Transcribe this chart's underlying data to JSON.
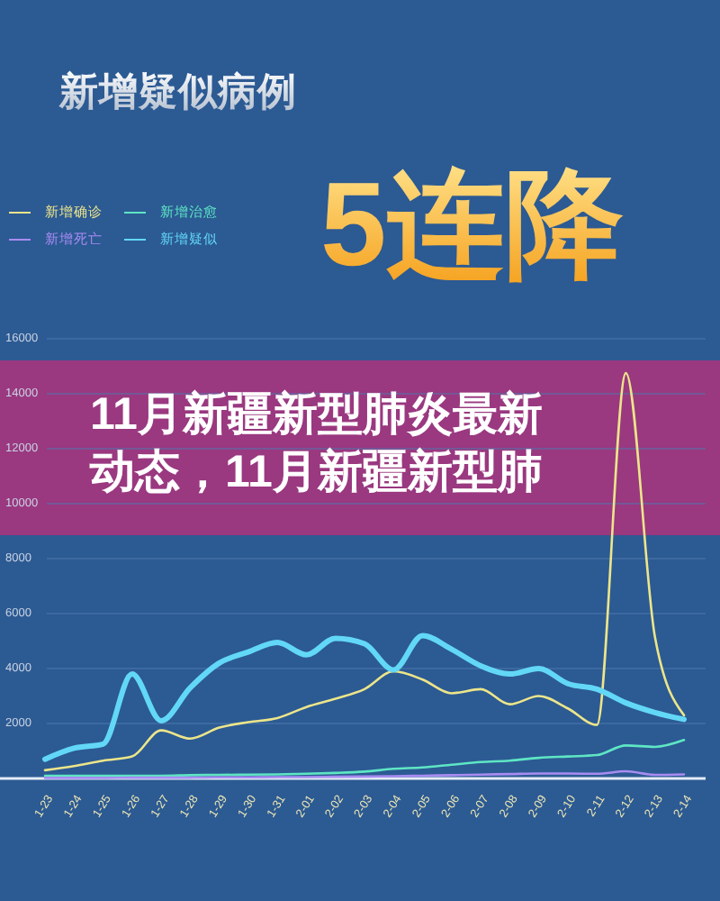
{
  "chart_data": {
    "type": "line",
    "title": "新增疑似病例",
    "subtitle": "5连降",
    "annotations": [
      "11月新疆新型肺炎最新动态，11月新疆新型肺"
    ],
    "categories": [
      "1-23",
      "1-24",
      "1-25",
      "1-26",
      "1-27",
      "1-28",
      "1-29",
      "1-30",
      "1-31",
      "2-01",
      "2-02",
      "2-03",
      "2-04",
      "2-05",
      "2-06",
      "2-07",
      "2-08",
      "2-09",
      "2-10",
      "2-11",
      "2-12",
      "2-13",
      "2-14"
    ],
    "series": [
      {
        "name": "新增确诊",
        "color": "#ece58a",
        "values": [
          300,
          450,
          650,
          800,
          1750,
          1450,
          1850,
          2050,
          2200,
          2600,
          2900,
          3250,
          3900,
          3600,
          3100,
          3250,
          2700,
          3000,
          2550,
          1950,
          14750,
          5150,
          2300
        ]
      },
      {
        "name": "新增治愈",
        "color": "#5ee6c4",
        "values": [
          100,
          100,
          100,
          100,
          100,
          120,
          130,
          140,
          150,
          170,
          200,
          250,
          350,
          400,
          500,
          600,
          650,
          750,
          800,
          850,
          1200,
          1150,
          1400
        ]
      },
      {
        "name": "新增死亡",
        "color": "#a88cf2",
        "values": [
          20,
          20,
          20,
          30,
          30,
          30,
          40,
          40,
          50,
          50,
          60,
          70,
          80,
          100,
          120,
          140,
          160,
          180,
          180,
          170,
          260,
          130,
          150
        ]
      },
      {
        "name": "新增疑似",
        "color": "#62d8f6",
        "values": [
          700,
          1100,
          1250,
          3800,
          2100,
          3300,
          4200,
          4600,
          4950,
          4500,
          5100,
          4900,
          3950,
          5200,
          4700,
          4100,
          3800,
          4000,
          3450,
          3250,
          2750,
          2400,
          2150
        ]
      }
    ],
    "ylim": [
      0,
      16000
    ],
    "yticks": [
      2000,
      4000,
      6000,
      8000,
      10000,
      12000,
      14000,
      16000
    ],
    "grid": "y",
    "legend": "top left"
  }
}
